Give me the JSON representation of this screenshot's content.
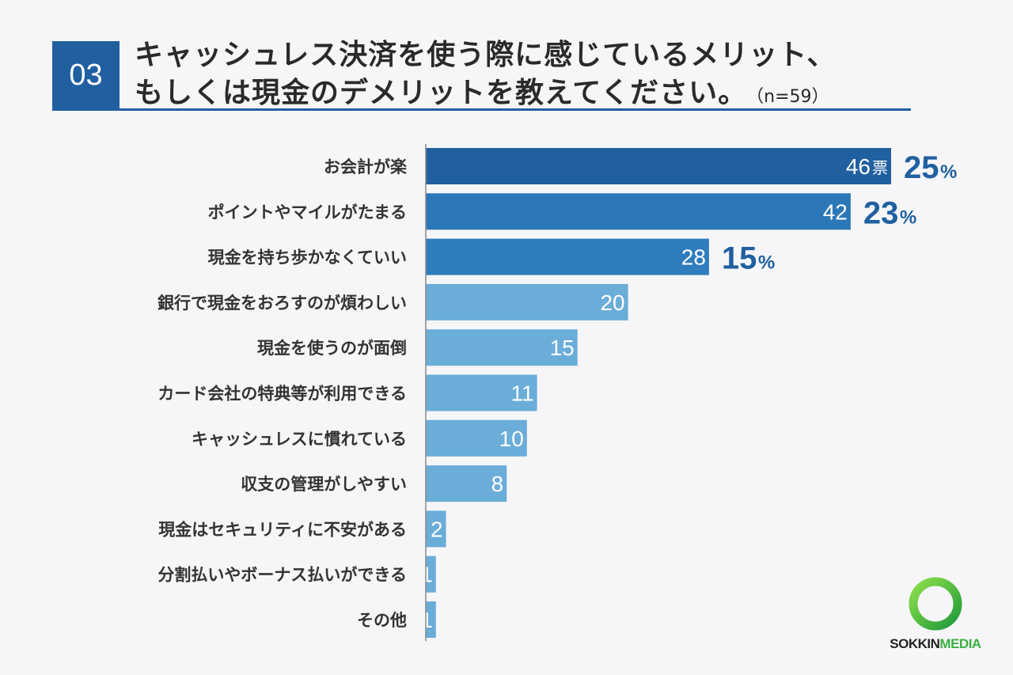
{
  "header": {
    "question_number": "03",
    "title_line1": "キャッシュレス決済を使う際に感じているメリット、",
    "title_line2": "もしくは現金のデメリットを教えてください。",
    "sample_size": "（n=59）"
  },
  "chart_data": {
    "type": "bar",
    "orientation": "horizontal",
    "categories": [
      "お会計が楽",
      "ポイントやマイルがたまる",
      "現金を持ち歩かなくていい",
      "銀行で現金をおろすのが煩わしい",
      "現金を使うのが面倒",
      "カード会社の特典等が利用できる",
      "キャッシュレスに慣れている",
      "収支の管理がしやすい",
      "現金はセキュリティに不安がある",
      "分割払いやボーナス払いができる",
      "その他"
    ],
    "values": [
      46,
      42,
      28,
      20,
      15,
      11,
      10,
      8,
      2,
      1,
      1
    ],
    "value_unit": "票",
    "percent_labels": [
      "25",
      "23",
      "15"
    ],
    "percent_sign": "%",
    "colors": {
      "top": "#2060a0",
      "second": "#2b77b8",
      "third": "#2f7dbd",
      "rest": "#6aadd9",
      "axis": "#888888"
    }
  },
  "logo": {
    "brand_part1": "SOKKIN",
    "brand_part2": "MEDIA",
    "icon": "ring-logo-icon"
  }
}
